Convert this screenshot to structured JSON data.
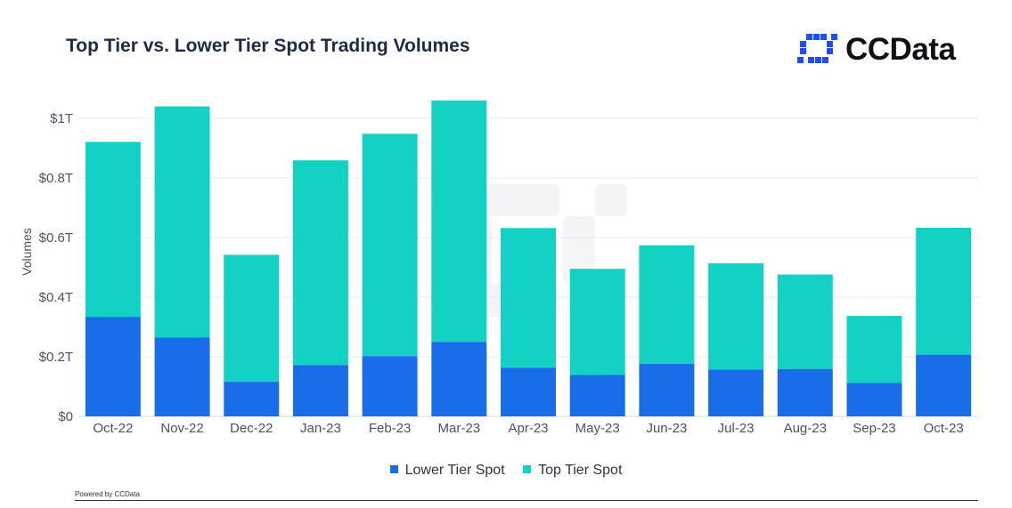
{
  "title": "Top Tier vs. Lower Tier Spot Trading Volumes",
  "logo": {
    "text": "CCData",
    "color": "#1e4dff",
    "icon": "ccdata-logo-icon"
  },
  "footer": "Powered by CCData",
  "colors": {
    "lower": "#1a6de8",
    "top": "#14d2c3",
    "grid": "#e6e8ec",
    "axis_text": "#4b5160"
  },
  "chart_data": {
    "type": "bar",
    "stacked": true,
    "title": "Top Tier vs. Lower Tier Spot Trading Volumes",
    "ylabel": "Volumes",
    "xlabel": "",
    "ylim": [
      0,
      1000000000000
    ],
    "yticks": [
      {
        "value": 0,
        "label": "$0"
      },
      {
        "value": 200000000000,
        "label": "$0.2T"
      },
      {
        "value": 400000000000,
        "label": "$0.4T"
      },
      {
        "value": 600000000000,
        "label": "$0.6T"
      },
      {
        "value": 800000000000,
        "label": "$0.8T"
      },
      {
        "value": 1000000000000,
        "label": "$1T"
      }
    ],
    "grid": true,
    "legend_position": "bottom-center",
    "categories": [
      "Oct-22",
      "Nov-22",
      "Dec-22",
      "Jan-23",
      "Feb-23",
      "Mar-23",
      "Apr-23",
      "May-23",
      "Jun-23",
      "Jul-23",
      "Aug-23",
      "Sep-23",
      "Oct-23"
    ],
    "series": [
      {
        "name": "Lower Tier Spot",
        "color": "#1a6de8",
        "values": [
          334000000000,
          265000000000,
          116000000000,
          172000000000,
          202000000000,
          250000000000,
          163000000000,
          139000000000,
          176000000000,
          157000000000,
          159000000000,
          112000000000,
          207000000000
        ]
      },
      {
        "name": "Top Tier Spot",
        "color": "#14d2c3",
        "values": [
          587000000000,
          775000000000,
          426000000000,
          687000000000,
          746000000000,
          810000000000,
          469000000000,
          356000000000,
          398000000000,
          357000000000,
          317000000000,
          225000000000,
          426000000000
        ]
      }
    ]
  }
}
